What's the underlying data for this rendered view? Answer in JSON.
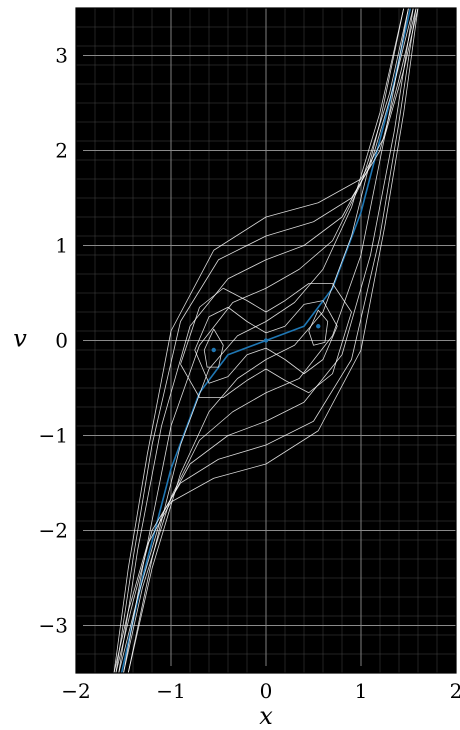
{
  "chart_data": {
    "type": "line",
    "title": "",
    "xlabel": "x",
    "ylabel": "v",
    "xlim": [
      -2,
      2
    ],
    "ylim": [
      -3.5,
      3.5
    ],
    "xticks": [
      -2,
      -1,
      0,
      1,
      2
    ],
    "yticks": [
      -3,
      -2,
      -1,
      0,
      1,
      2,
      3
    ],
    "x_tick_labels": [
      "−2",
      "−1",
      "0",
      "1",
      "2"
    ],
    "y_tick_labels": [
      "−3",
      "−2",
      "−1",
      "0",
      "1",
      "2",
      "3"
    ],
    "grid": true,
    "minor_grid": true,
    "legend": "none",
    "colors": {
      "background": "#000000",
      "trajectories": "#ffffff",
      "highlight": "#1f77b4",
      "grid": "#555555"
    },
    "fixed_points": [
      {
        "x": -0.55,
        "v": -0.1
      },
      {
        "x": 0.0,
        "v": 0.0
      },
      {
        "x": 0.55,
        "v": 0.15
      }
    ],
    "series": [
      {
        "role": "highlight",
        "x": [
          -1.52,
          -1.3,
          -1.0,
          -0.7,
          -0.4,
          0.0,
          0.4,
          0.7,
          1.0,
          1.3,
          1.52
        ],
        "y": [
          -3.5,
          -2.5,
          -1.35,
          -0.55,
          -0.15,
          0.0,
          0.15,
          0.55,
          1.35,
          2.5,
          3.5
        ]
      },
      {
        "role": "trajectory",
        "x": [
          -1.45,
          -1.2,
          -0.9,
          -0.6,
          -0.3,
          0.0,
          0.3,
          0.6,
          0.9,
          1.2,
          1.45
        ],
        "y": [
          -3.5,
          -2.3,
          -1.1,
          -0.3,
          0.05,
          0.2,
          0.4,
          0.75,
          1.4,
          2.4,
          3.5
        ]
      },
      {
        "role": "trajectory",
        "x": [
          -1.45,
          -1.2,
          -0.9,
          -0.6,
          -0.3,
          0.0,
          0.3,
          0.6,
          0.9,
          1.2,
          1.45
        ],
        "y": [
          -3.5,
          -2.4,
          -1.4,
          -0.75,
          -0.4,
          -0.2,
          -0.05,
          0.3,
          1.1,
          2.3,
          3.5
        ]
      },
      {
        "role": "trajectory",
        "x": [
          -1.5,
          -1.3,
          -1.0,
          -0.7,
          -0.35,
          0.0,
          0.35,
          0.7,
          1.0,
          1.3,
          1.5
        ],
        "y": [
          -3.5,
          -2.4,
          -0.9,
          -0.05,
          0.4,
          0.55,
          0.75,
          1.05,
          1.65,
          2.6,
          3.5
        ]
      },
      {
        "role": "trajectory",
        "x": [
          -1.5,
          -1.3,
          -1.0,
          -0.7,
          -0.35,
          0.0,
          0.35,
          0.7,
          1.0,
          1.3,
          1.5
        ],
        "y": [
          -3.5,
          -2.6,
          -1.65,
          -1.05,
          -0.75,
          -0.55,
          -0.4,
          0.05,
          0.9,
          2.4,
          3.5
        ]
      },
      {
        "role": "trajectory",
        "x": [
          -1.55,
          -1.35,
          -1.1,
          -0.8,
          -0.4,
          0.0,
          0.4,
          0.8,
          1.1,
          1.35,
          1.55
        ],
        "y": [
          -3.5,
          -2.2,
          -0.9,
          0.15,
          0.65,
          0.85,
          1.0,
          1.3,
          1.85,
          2.7,
          3.5
        ]
      },
      {
        "role": "trajectory",
        "x": [
          -1.55,
          -1.35,
          -1.1,
          -0.8,
          -0.4,
          0.0,
          0.4,
          0.8,
          1.1,
          1.35,
          1.55
        ],
        "y": [
          -3.5,
          -2.7,
          -1.85,
          -1.3,
          -1.0,
          -0.85,
          -0.65,
          -0.15,
          0.9,
          2.2,
          3.5
        ]
      },
      {
        "role": "trajectory",
        "x": [
          -1.58,
          -1.4,
          -1.2,
          -0.9,
          -0.5,
          0.0,
          0.5,
          0.9,
          1.2,
          1.4,
          1.58
        ],
        "y": [
          -3.5,
          -2.3,
          -1.1,
          0.2,
          0.85,
          1.1,
          1.25,
          1.5,
          2.0,
          2.75,
          3.5
        ]
      },
      {
        "role": "trajectory",
        "x": [
          -1.58,
          -1.4,
          -1.2,
          -0.9,
          -0.5,
          0.0,
          0.5,
          0.9,
          1.2,
          1.4,
          1.58
        ],
        "y": [
          -3.5,
          -2.75,
          -2.0,
          -1.5,
          -1.25,
          -1.1,
          -0.85,
          -0.2,
          1.1,
          2.3,
          3.5
        ]
      },
      {
        "role": "trajectory",
        "x": [
          -1.6,
          -1.45,
          -1.25,
          -1.0,
          -0.55,
          0.0,
          0.55,
          1.0,
          1.25,
          1.45,
          1.6
        ],
        "y": [
          -3.5,
          -2.4,
          -1.2,
          0.1,
          0.95,
          1.3,
          1.45,
          1.7,
          2.15,
          2.85,
          3.5
        ]
      },
      {
        "role": "trajectory",
        "x": [
          -1.6,
          -1.45,
          -1.25,
          -1.0,
          -0.55,
          0.0,
          0.55,
          1.0,
          1.25,
          1.45,
          1.6
        ],
        "y": [
          -3.5,
          -2.85,
          -2.15,
          -1.7,
          -1.45,
          -1.3,
          -0.95,
          -0.1,
          1.2,
          2.4,
          3.5
        ]
      },
      {
        "role": "trajectory",
        "x": [
          -0.75,
          -0.6,
          -0.4,
          -0.2,
          0.0,
          0.2,
          0.4,
          0.6,
          0.75,
          0.6,
          0.4,
          0.2,
          0.0,
          -0.2,
          -0.4,
          -0.6,
          -0.75
        ],
        "y": [
          -0.1,
          0.25,
          0.35,
          0.2,
          0.08,
          0.15,
          0.38,
          0.42,
          0.15,
          -0.2,
          -0.35,
          -0.2,
          -0.08,
          -0.15,
          -0.38,
          -0.45,
          -0.1
        ]
      },
      {
        "role": "trajectory",
        "x": [
          -0.9,
          -0.7,
          -0.45,
          -0.2,
          0.0,
          0.2,
          0.45,
          0.7,
          0.9,
          0.7,
          0.45,
          0.2,
          0.0,
          -0.2,
          -0.45,
          -0.7,
          -0.9
        ],
        "y": [
          -0.25,
          0.35,
          0.55,
          0.42,
          0.3,
          0.42,
          0.6,
          0.6,
          0.3,
          -0.35,
          -0.55,
          -0.42,
          -0.3,
          -0.42,
          -0.6,
          -0.6,
          -0.25
        ]
      },
      {
        "role": "trajectory",
        "x": [
          -0.65,
          -0.55,
          -0.45,
          -0.5,
          -0.62,
          -0.65
        ],
        "y": [
          -0.1,
          0.12,
          -0.05,
          -0.28,
          -0.28,
          -0.1
        ]
      },
      {
        "role": "trajectory",
        "x": [
          0.45,
          0.55,
          0.65,
          0.62,
          0.5,
          0.45
        ],
        "y": [
          0.1,
          0.32,
          0.2,
          -0.02,
          -0.05,
          0.1
        ]
      }
    ]
  }
}
